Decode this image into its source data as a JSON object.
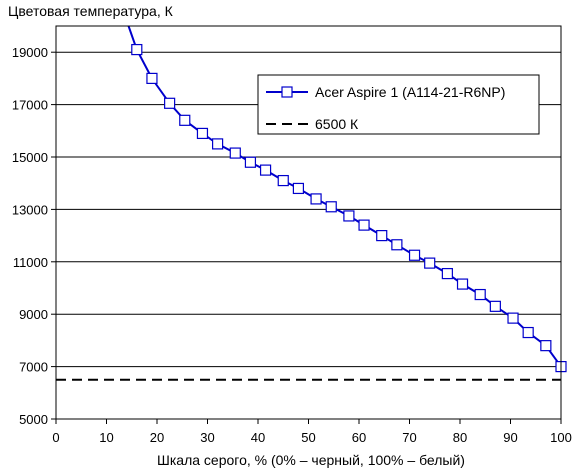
{
  "chart_data": {
    "type": "line",
    "title": "",
    "ylabel": "Цветовая температура, К",
    "xlabel": "Шкала серого, % (0% – черный, 100% – белый)",
    "xlim": [
      0,
      100
    ],
    "ylim": [
      5000,
      20000
    ],
    "x_ticks": [
      0,
      10,
      20,
      30,
      40,
      50,
      60,
      70,
      80,
      90,
      100
    ],
    "y_ticks": [
      5000,
      7000,
      9000,
      11000,
      13000,
      15000,
      17000,
      19000
    ],
    "grid": "horizontal",
    "legend_position": "top-right",
    "series": [
      {
        "name": "Acer Aspire 1 (A114-21-R6NP)",
        "color": "#0000cc",
        "marker": "square",
        "x": [
          14,
          16,
          19,
          22.5,
          25.5,
          29,
          32,
          35.5,
          38.5,
          41.5,
          45,
          48,
          51.5,
          54.5,
          58,
          61,
          64.5,
          67.5,
          71,
          74,
          77.5,
          80.5,
          84,
          87,
          90.5,
          93.5,
          97,
          100
        ],
        "y": [
          20200,
          19100,
          18000,
          17050,
          16400,
          15900,
          15500,
          15150,
          14800,
          14500,
          14100,
          13800,
          13400,
          13100,
          12750,
          12400,
          12000,
          11650,
          11250,
          10950,
          10550,
          10150,
          9750,
          9300,
          8850,
          8300,
          7800,
          7000
        ],
        "markers_from_index": 1
      },
      {
        "name": "6500 К",
        "color": "#000000",
        "style": "dashed",
        "x": [
          0,
          100
        ],
        "y": [
          6500,
          6500
        ]
      }
    ]
  }
}
